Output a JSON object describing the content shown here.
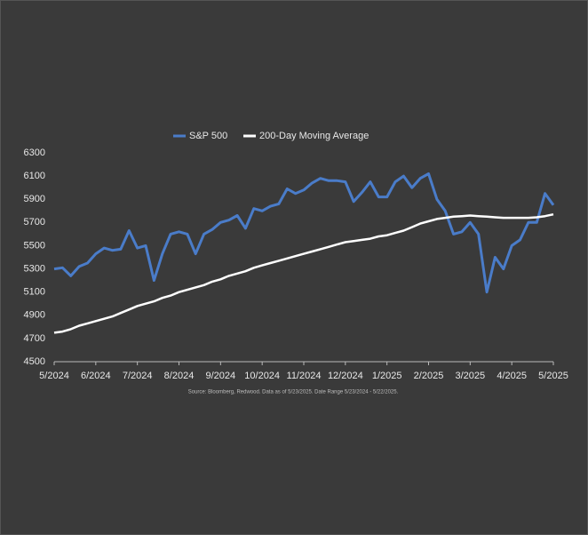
{
  "chart_data": {
    "type": "line",
    "source": "Source: Bloomberg, Redwood. Data as of 5/23/2025. Date Range 5/23/2024 - 5/22/2025.",
    "categories": [
      "5/2024",
      null,
      null,
      null,
      null,
      "6/2024",
      null,
      null,
      null,
      null,
      "7/2024",
      null,
      null,
      null,
      null,
      "8/2024",
      null,
      null,
      null,
      null,
      "9/2024",
      null,
      null,
      null,
      null,
      "10/2024",
      null,
      null,
      null,
      null,
      "11/2024",
      null,
      null,
      null,
      null,
      "12/2024",
      null,
      null,
      null,
      null,
      "1/2025",
      null,
      null,
      null,
      null,
      "2/2025",
      null,
      null,
      null,
      null,
      "3/2025",
      null,
      null,
      null,
      null,
      "4/2025",
      null,
      null,
      null,
      null,
      "5/2025"
    ],
    "series": [
      {
        "name": "S&P 500",
        "color": "#4a7cc9",
        "values": [
          5300,
          5310,
          5240,
          5320,
          5350,
          5430,
          5480,
          5460,
          5470,
          5630,
          5480,
          5500,
          5200,
          5430,
          5600,
          5620,
          5600,
          5430,
          5600,
          5640,
          5700,
          5720,
          5760,
          5650,
          5820,
          5800,
          5840,
          5860,
          5990,
          5950,
          5980,
          6040,
          6080,
          6060,
          6060,
          6050,
          5880,
          5960,
          6050,
          5920,
          5920,
          6050,
          6100,
          6000,
          6080,
          6120,
          5900,
          5800,
          5600,
          5620,
          5700,
          5600,
          5100,
          5400,
          5300,
          5500,
          5550,
          5700,
          5700,
          5950,
          5850
        ]
      },
      {
        "name": "200-Day Moving Average",
        "color": "#ffffff",
        "values": [
          4750,
          4760,
          4780,
          4810,
          4830,
          4850,
          4870,
          4890,
          4920,
          4950,
          4980,
          5000,
          5020,
          5050,
          5070,
          5100,
          5120,
          5140,
          5160,
          5190,
          5210,
          5240,
          5260,
          5280,
          5310,
          5330,
          5350,
          5370,
          5390,
          5410,
          5430,
          5450,
          5470,
          5490,
          5510,
          5530,
          5540,
          5550,
          5560,
          5580,
          5590,
          5610,
          5630,
          5660,
          5690,
          5710,
          5730,
          5740,
          5750,
          5755,
          5760,
          5755,
          5750,
          5745,
          5740,
          5740,
          5740,
          5740,
          5745,
          5755,
          5770
        ]
      }
    ],
    "ylim": [
      4500,
      6300
    ],
    "yticks": [
      4500,
      4700,
      4900,
      5100,
      5300,
      5500,
      5700,
      5900,
      6100,
      6300
    ],
    "grid": false,
    "legend": "top"
  }
}
